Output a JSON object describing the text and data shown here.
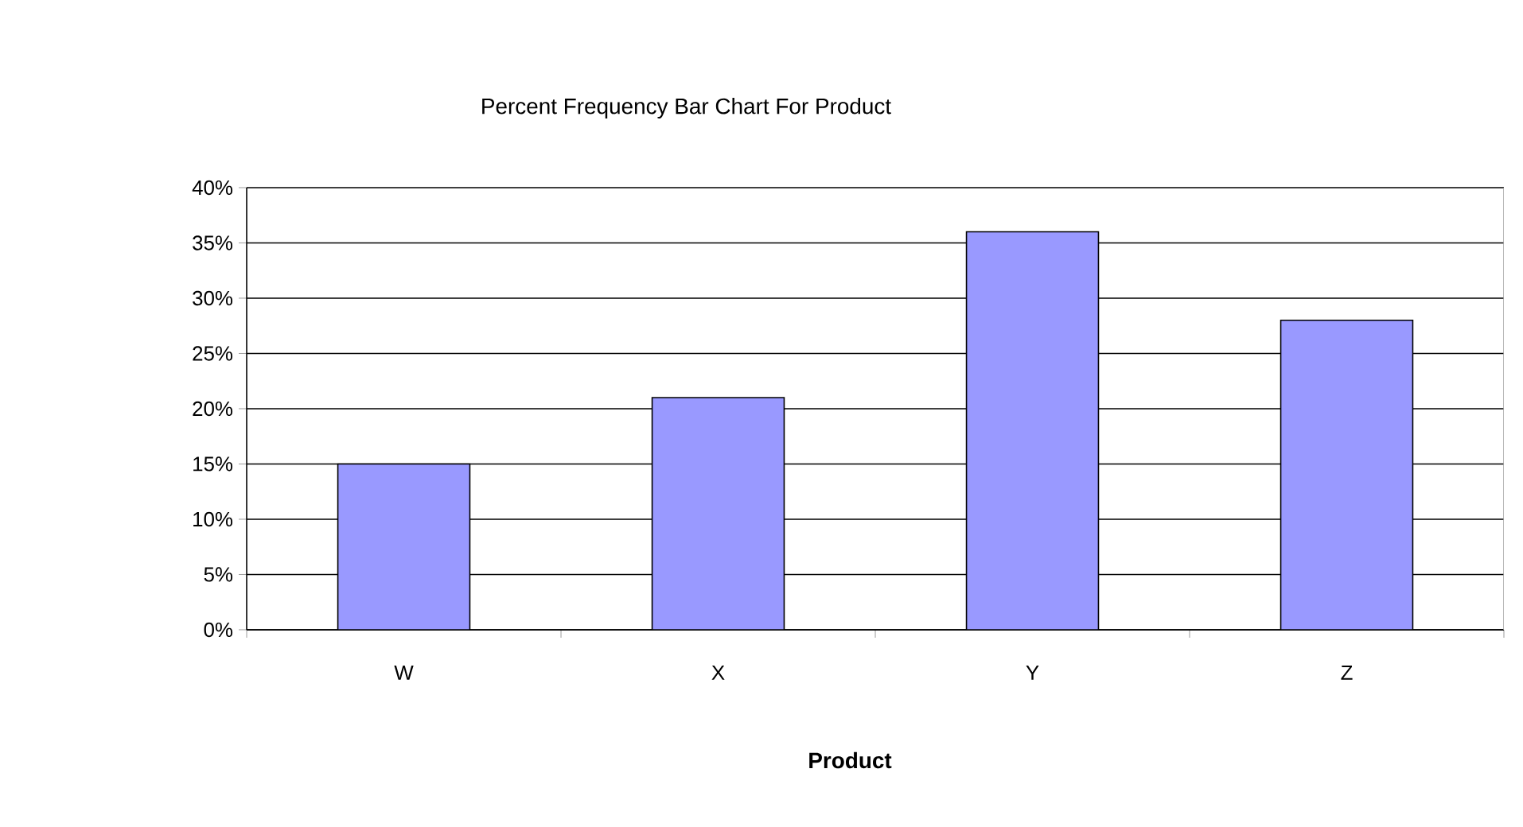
{
  "chart_data": {
    "type": "bar",
    "title": "Percent Frequency Bar Chart For Product",
    "xlabel": "Product",
    "categories": [
      "W",
      "X",
      "Y",
      "Z"
    ],
    "values": [
      15,
      21,
      36,
      28
    ],
    "color": "#9999ff",
    "ylim": [
      0,
      40
    ],
    "yticks": [
      {
        "value": 0,
        "label": "0%"
      },
      {
        "value": 5,
        "label": "5%"
      },
      {
        "value": 10,
        "label": "10%"
      },
      {
        "value": 15,
        "label": "15%"
      },
      {
        "value": 20,
        "label": "20%"
      },
      {
        "value": 25,
        "label": "25%"
      },
      {
        "value": 30,
        "label": "30%"
      },
      {
        "value": 35,
        "label": "35%"
      },
      {
        "value": 40,
        "label": "40%"
      }
    ],
    "grid": "y"
  }
}
